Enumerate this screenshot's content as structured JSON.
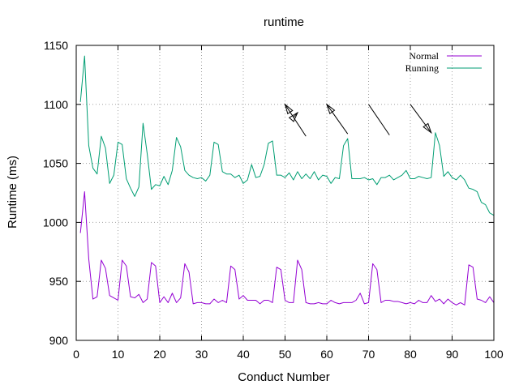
{
  "chart_data": {
    "type": "line",
    "title": "runtime",
    "xlabel": "Conduct Number",
    "ylabel": "Runtime (ms)",
    "xlim": [
      0,
      100
    ],
    "ylim": [
      900,
      1150
    ],
    "xticks": [
      "0",
      "10",
      "20",
      "30",
      "40",
      "50",
      "60",
      "70",
      "80",
      "90",
      "100"
    ],
    "yticks": [
      "900",
      "950",
      "1000",
      "1050",
      "1100",
      "1150"
    ],
    "grid": true,
    "legend_position": "top-right",
    "x": [
      1,
      2,
      3,
      4,
      5,
      6,
      7,
      8,
      9,
      10,
      11,
      12,
      13,
      14,
      15,
      16,
      17,
      18,
      19,
      20,
      21,
      22,
      23,
      24,
      25,
      26,
      27,
      28,
      29,
      30,
      31,
      32,
      33,
      34,
      35,
      36,
      37,
      38,
      39,
      40,
      41,
      42,
      43,
      44,
      45,
      46,
      47,
      48,
      49,
      50,
      51,
      52,
      53,
      54,
      55,
      56,
      57,
      58,
      59,
      60,
      61,
      62,
      63,
      64,
      65,
      66,
      67,
      68,
      69,
      70,
      71,
      72,
      73,
      74,
      75,
      76,
      77,
      78,
      79,
      80,
      81,
      82,
      83,
      84,
      85,
      86,
      87,
      88,
      89,
      90,
      91,
      92,
      93,
      94,
      95,
      96,
      97,
      98,
      99,
      100
    ],
    "series": [
      {
        "name": "Normal",
        "color": "#9400d3",
        "values": [
          991,
          1026,
          969,
          935,
          937,
          968,
          961,
          938,
          936,
          934,
          968,
          963,
          937,
          936,
          939,
          932,
          935,
          966,
          963,
          932,
          937,
          932,
          940,
          932,
          936,
          965,
          958,
          931,
          932,
          932,
          931,
          931,
          935,
          932,
          934,
          932,
          963,
          960,
          935,
          938,
          934,
          934,
          934,
          931,
          934,
          934,
          932,
          962,
          960,
          934,
          932,
          932,
          968,
          960,
          932,
          931,
          931,
          932,
          931,
          931,
          934,
          932,
          931,
          932,
          932,
          932,
          934,
          940,
          931,
          932,
          965,
          960,
          932,
          934,
          934,
          933,
          933,
          932,
          931,
          932,
          931,
          934,
          932,
          932,
          938,
          933,
          935,
          931,
          935,
          932,
          930,
          932,
          930,
          964,
          962,
          935,
          934,
          932,
          937,
          932
        ]
      },
      {
        "name": "Running",
        "color": "#009e73",
        "values": [
          1102,
          1141,
          1065,
          1046,
          1041,
          1073,
          1063,
          1033,
          1040,
          1068,
          1066,
          1037,
          1029,
          1022,
          1030,
          1084,
          1058,
          1028,
          1032,
          1031,
          1039,
          1032,
          1044,
          1072,
          1064,
          1044,
          1040,
          1038,
          1037,
          1038,
          1035,
          1040,
          1068,
          1066,
          1043,
          1041,
          1041,
          1038,
          1040,
          1033,
          1036,
          1049,
          1038,
          1039,
          1049,
          1067,
          1069,
          1040,
          1040,
          1038,
          1042,
          1036,
          1043,
          1037,
          1041,
          1037,
          1043,
          1036,
          1040,
          1039,
          1033,
          1038,
          1037,
          1065,
          1071,
          1037,
          1037,
          1037,
          1038,
          1036,
          1037,
          1032,
          1038,
          1038,
          1040,
          1036,
          1038,
          1040,
          1044,
          1037,
          1037,
          1039,
          1038,
          1037,
          1038,
          1076,
          1065,
          1039,
          1043,
          1038,
          1036,
          1040,
          1036,
          1029,
          1028,
          1026,
          1017,
          1015,
          1008,
          1006
        ]
      }
    ],
    "annotations": [
      {
        "from": [
          55,
          1073
        ],
        "to": [
          50,
          1100
        ],
        "head": "to"
      },
      {
        "from": [
          52,
          1089
        ],
        "to": [
          53,
          1093
        ],
        "head": "to"
      },
      {
        "from": [
          65,
          1075
        ],
        "to": [
          60,
          1100
        ],
        "head": "to"
      },
      {
        "from": [
          75,
          1074
        ],
        "to": [
          70,
          1100
        ],
        "head": "none"
      },
      {
        "from": [
          80,
          1100
        ],
        "to": [
          85,
          1076
        ],
        "head": "to"
      }
    ]
  }
}
